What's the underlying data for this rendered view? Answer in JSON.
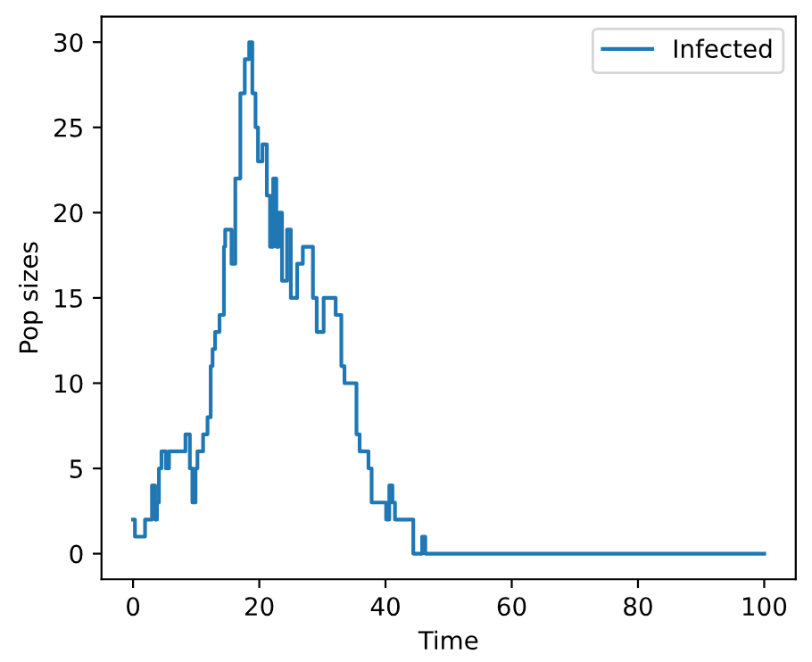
{
  "chart_data": {
    "type": "step",
    "xlabel": "Time",
    "ylabel": "Pop sizes",
    "xlim": [
      -5,
      105
    ],
    "ylim": [
      -1.5,
      31.5
    ],
    "xticks": [
      0,
      20,
      40,
      60,
      80,
      100
    ],
    "yticks": [
      0,
      5,
      10,
      15,
      20,
      25,
      30
    ],
    "grid": false,
    "legend": "top right",
    "series": [
      {
        "name": "Infected",
        "color": "#1f77b4",
        "x": [
          0,
          0.3,
          1.9,
          3.0,
          3.5,
          3.8,
          4.1,
          4.5,
          5.2,
          5.7,
          8.3,
          9.0,
          9.4,
          9.9,
          10.2,
          11.1,
          11.8,
          12.3,
          12.6,
          13.0,
          13.7,
          14.4,
          14.6,
          15.6,
          16.2,
          17.0,
          17.7,
          18.4,
          18.9,
          19.4,
          19.8,
          20.5,
          21.2,
          21.7,
          22.2,
          22.7,
          23.1,
          23.6,
          24.4,
          25.0,
          26.0,
          26.9,
          27.9,
          28.5,
          29.1,
          30.2,
          31.6,
          32.1,
          33.0,
          33.5,
          35.4,
          35.9,
          37.3,
          37.8,
          40.1,
          40.6,
          41.1,
          41.5,
          44.4,
          45.8,
          46.3,
          100
        ],
        "values": [
          2,
          1,
          2,
          4,
          2,
          3,
          5,
          6,
          5,
          6,
          7,
          5,
          3,
          5,
          6,
          7,
          8,
          11,
          12,
          13,
          14,
          18,
          19,
          17,
          22,
          27,
          29,
          30,
          27,
          25,
          23,
          24,
          21,
          18,
          22,
          18,
          20,
          16,
          19,
          15,
          17,
          18,
          18,
          15,
          13,
          15,
          15,
          14,
          11,
          10,
          7,
          6,
          5,
          3,
          2,
          4,
          3,
          2,
          0,
          1,
          0,
          0
        ]
      }
    ]
  }
}
